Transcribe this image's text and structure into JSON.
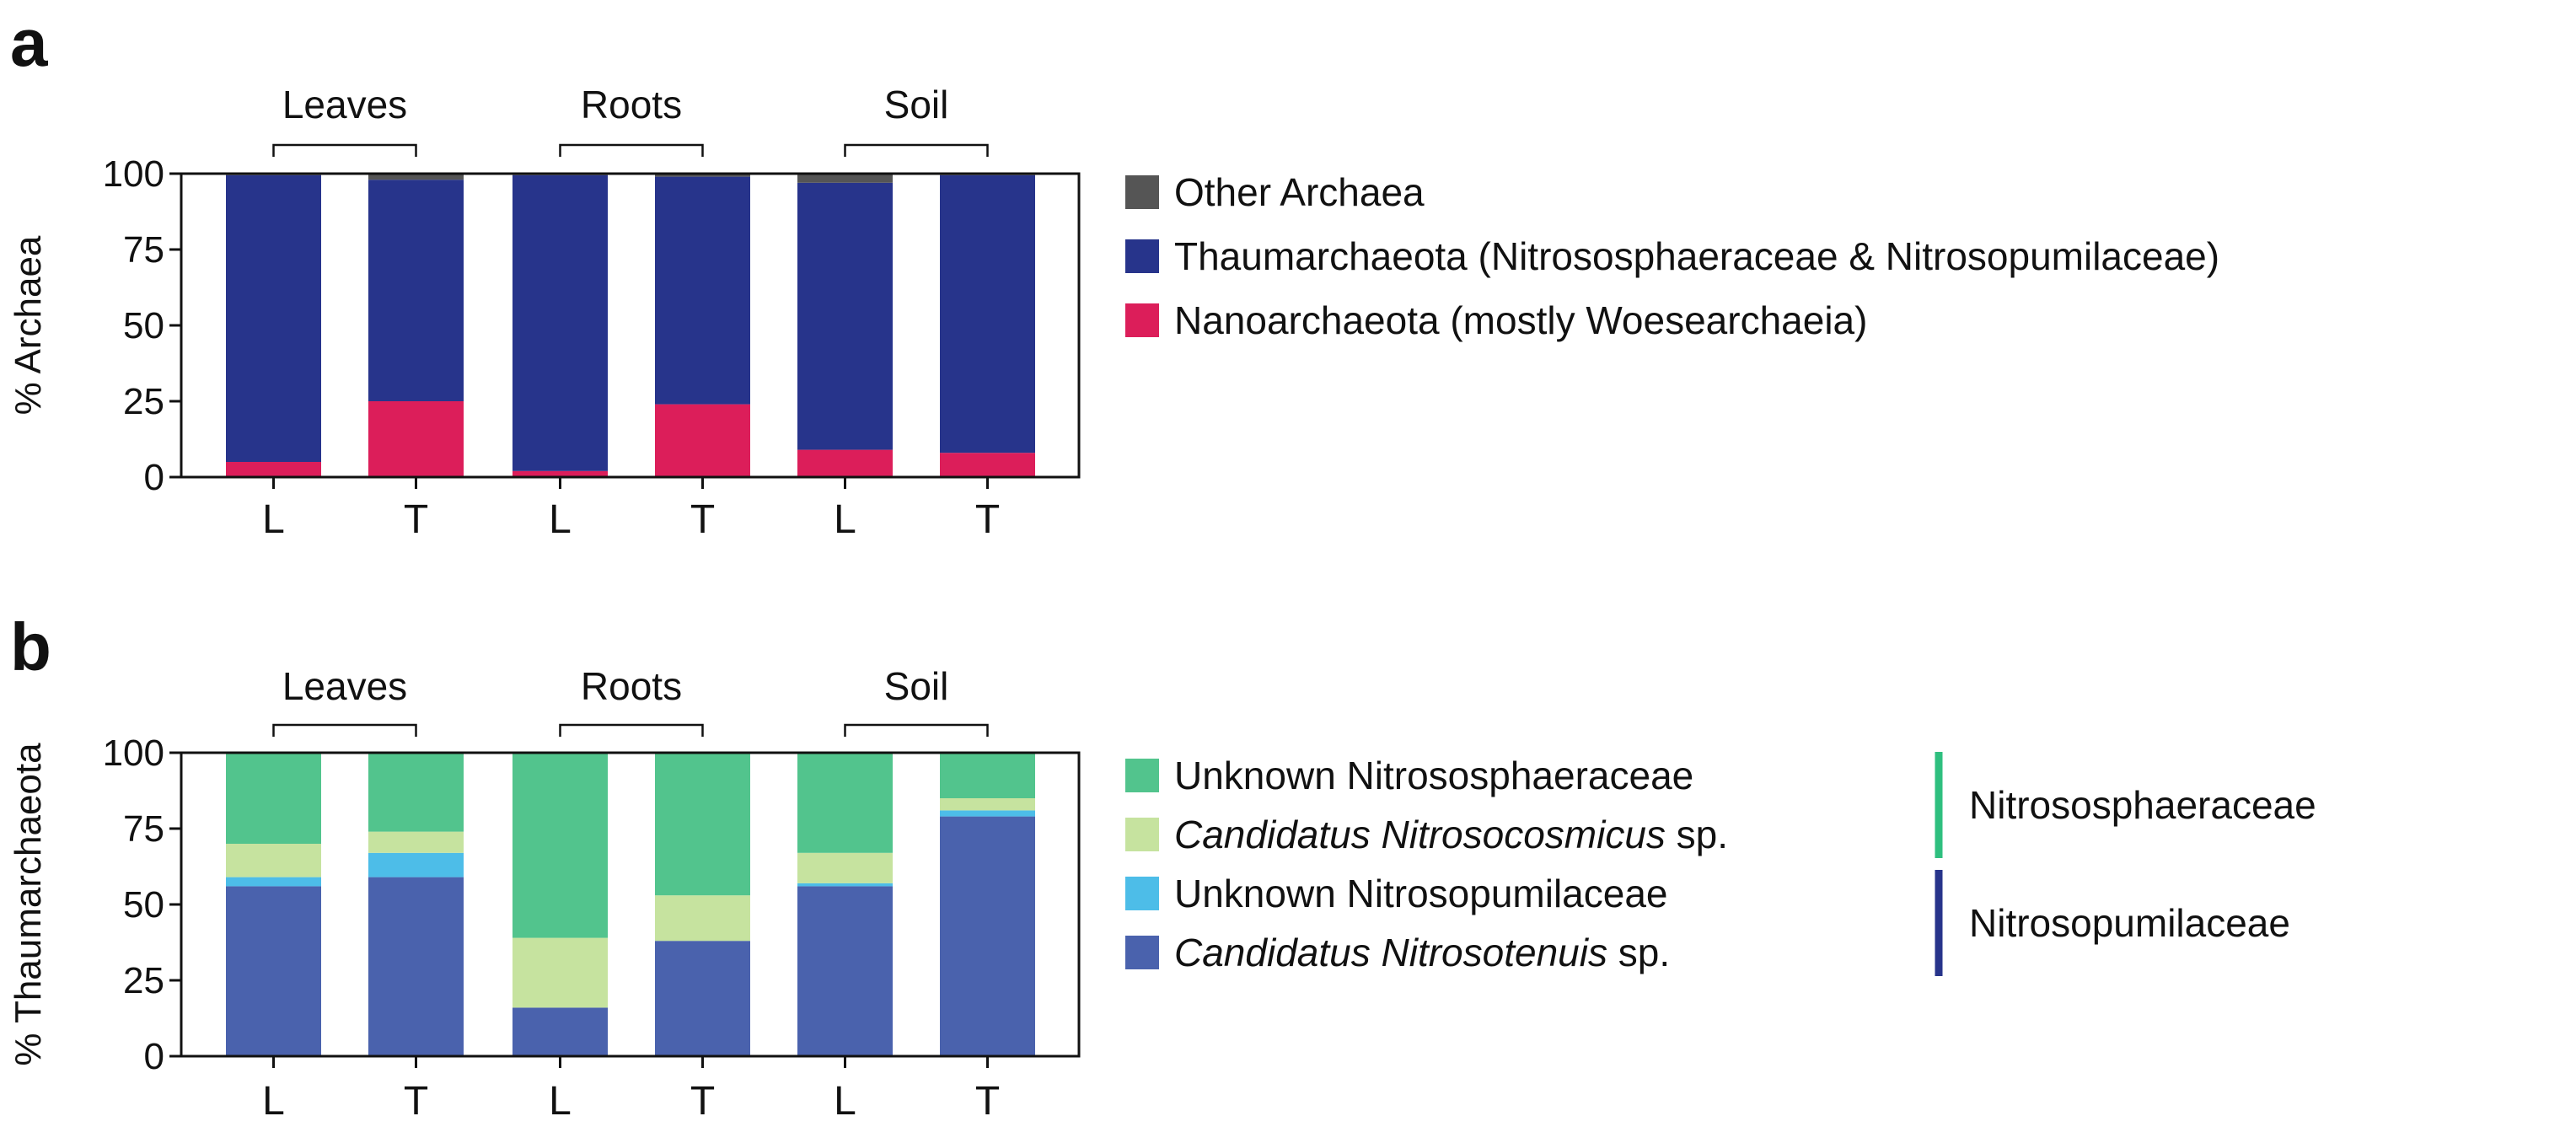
{
  "chart_data": [
    {
      "panel_label": "a",
      "type": "bar",
      "stacked": true,
      "groups": [
        "Leaves",
        "Roots",
        "Soil"
      ],
      "categories": [
        "L",
        "T",
        "L",
        "T",
        "L",
        "T"
      ],
      "ylabel": "% Archaea",
      "ylim": [
        0,
        100
      ],
      "yticks": [
        0,
        25,
        50,
        75,
        100
      ],
      "series": [
        {
          "name": "Nanoarchaeota (mostly Woesearchaeia)",
          "color": "#dc1e5a",
          "values": [
            5,
            25,
            2,
            24,
            9,
            8
          ]
        },
        {
          "name": "Thaumarchaeota (Nitrososphaeraceae & Nitrosopumilaceae)",
          "color": "#27348b",
          "values": [
            94.5,
            73,
            97.5,
            75,
            88,
            91.5
          ]
        },
        {
          "name": "Other Archaea",
          "color": "#555555",
          "values": [
            0.5,
            2,
            0.5,
            1,
            3,
            0.5
          ]
        }
      ],
      "legend_order": [
        "Other Archaea",
        "Thaumarchaeota (Nitrososphaeraceae & Nitrosopumilaceae)",
        "Nanoarchaeota (mostly Woesearchaeia)"
      ],
      "legend_placement": "right"
    },
    {
      "panel_label": "b",
      "type": "bar",
      "stacked": true,
      "groups": [
        "Leaves",
        "Roots",
        "Soil"
      ],
      "categories": [
        "L",
        "T",
        "L",
        "T",
        "L",
        "T"
      ],
      "ylabel": "% Thaumarchaeota",
      "ylim": [
        0,
        100
      ],
      "yticks": [
        0,
        25,
        50,
        75,
        100
      ],
      "series": [
        {
          "name": "Candidatus Nitrosotenuis sp.",
          "italic": "Candidatus Nitrosotenuis",
          "suffix": " sp.",
          "color": "#4a62ad",
          "values": [
            56,
            59,
            16,
            38,
            56,
            79
          ]
        },
        {
          "name": "Unknown Nitrosopumilaceae",
          "color": "#4dbde8",
          "values": [
            3,
            8,
            0,
            0,
            1,
            2
          ]
        },
        {
          "name": "Candidatus Nitrosocosmicus sp.",
          "italic": "Candidatus Nitrosocosmicus",
          "suffix": " sp.",
          "color": "#c6e39f",
          "values": [
            11,
            7,
            23,
            15,
            10,
            4
          ]
        },
        {
          "name": "Unknown Nitrososphaeraceae",
          "color": "#52c48d",
          "values": [
            30,
            26,
            61,
            47,
            33,
            15
          ]
        }
      ],
      "legend_order": [
        "Unknown Nitrososphaeraceae",
        "Candidatus Nitrosocosmicus sp.",
        "Unknown Nitrosopumilaceae",
        "Candidatus Nitrosotenuis sp."
      ],
      "legend_placement": "right",
      "families": [
        {
          "name": "Nitrososphaeraceae",
          "color": "#2fbf7f"
        },
        {
          "name": "Nitrosopumilaceae",
          "color": "#27348b"
        }
      ]
    }
  ]
}
